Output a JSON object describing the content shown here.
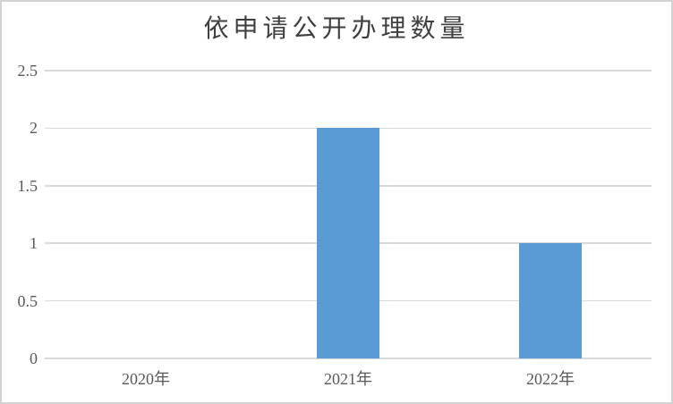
{
  "chart_data": {
    "type": "bar",
    "title": "依申请公开办理数量",
    "categories": [
      "2020年",
      "2021年",
      "2022年"
    ],
    "values": [
      0,
      2,
      1
    ],
    "y_tick_values": [
      0,
      0.5,
      1,
      1.5,
      2,
      2.5
    ],
    "y_tick_labels": [
      "0",
      "0.5",
      "1",
      "1.5",
      "2",
      "2.5"
    ],
    "ylim": [
      0,
      2.5
    ],
    "xlabel": "",
    "ylabel": "",
    "grid": "horizontal",
    "legend": "none",
    "colors": {
      "bar": "#5B9BD5",
      "gridline": "#D9D9D9",
      "title": "#3F3F3F",
      "tick_label": "#595959",
      "frame_border": "#D2D2D2"
    }
  }
}
